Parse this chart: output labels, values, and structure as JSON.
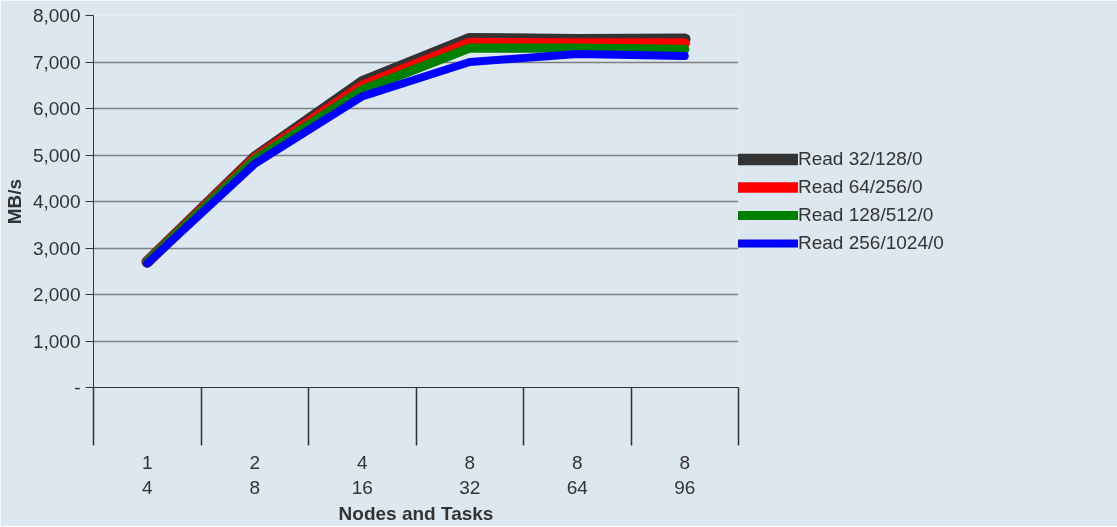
{
  "chart_data": {
    "type": "line",
    "xlabel": "Nodes and Tasks",
    "ylabel": "MB/s",
    "categories": [
      "1\n4",
      "2\n8",
      "4\n16",
      "8\n32",
      "8\n64",
      "8\n96"
    ],
    "ylim": [
      0,
      8000
    ],
    "yticks": [
      {
        "value": 0,
        "label": "-"
      },
      {
        "value": 1000,
        "label": "1,000"
      },
      {
        "value": 2000,
        "label": "2,000"
      },
      {
        "value": 3000,
        "label": "3,000"
      },
      {
        "value": 4000,
        "label": "4,000"
      },
      {
        "value": 5000,
        "label": "5,000"
      },
      {
        "value": 6000,
        "label": "6,000"
      },
      {
        "value": 7000,
        "label": "7,000"
      },
      {
        "value": 8000,
        "label": "8,000"
      }
    ],
    "grid": "y",
    "legend": "right",
    "marker": "none",
    "line_style": "solid",
    "series": [
      {
        "name": "Read 32/128/0",
        "color": "#333333",
        "values": [
          2700,
          4950,
          6570,
          7500,
          7480,
          7490
        ]
      },
      {
        "name": "Read 64/256/0",
        "color": "#ff0000",
        "values": [
          2700,
          4930,
          6490,
          7410,
          7400,
          7400
        ]
      },
      {
        "name": "Read 128/512/0",
        "color": "#008000",
        "values": [
          2700,
          4900,
          6400,
          7300,
          7300,
          7270
        ]
      },
      {
        "name": "Read 256/1024/0",
        "color": "#0000ff",
        "values": [
          2670,
          4810,
          6260,
          7000,
          7170,
          7130
        ]
      }
    ]
  }
}
